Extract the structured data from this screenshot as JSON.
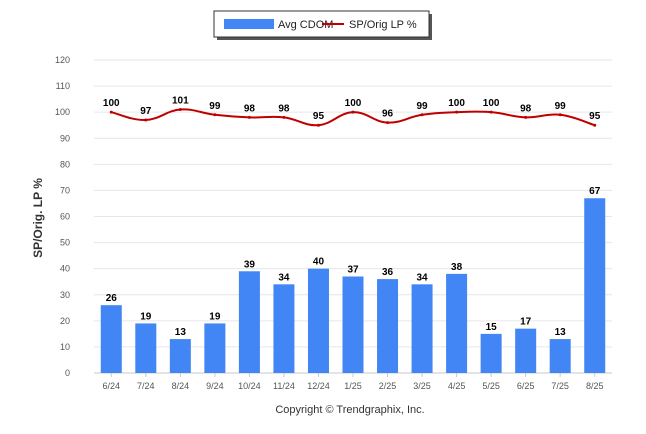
{
  "chart_data": {
    "type": "bar",
    "categories": [
      "6/24",
      "7/24",
      "8/24",
      "9/24",
      "10/24",
      "11/24",
      "12/24",
      "1/25",
      "2/25",
      "3/25",
      "4/25",
      "5/25",
      "6/25",
      "7/25",
      "8/25"
    ],
    "series": [
      {
        "name": "Avg CDOM",
        "kind": "bar",
        "color": "#4285f4",
        "values": [
          26,
          19,
          13,
          19,
          39,
          34,
          40,
          37,
          36,
          34,
          38,
          15,
          17,
          13,
          67
        ]
      },
      {
        "name": "SP/Orig LP %",
        "kind": "line",
        "color": "#c00000",
        "values": [
          100,
          97,
          101,
          99,
          98,
          98,
          95,
          100,
          96,
          99,
          100,
          100,
          98,
          99,
          95
        ]
      }
    ],
    "ylabel": "SP/Orig. LP %",
    "ylim": [
      0,
      120
    ],
    "yticks": [
      "0",
      "10",
      "20",
      "30",
      "40",
      "50",
      "60",
      "70",
      "80",
      "90",
      "100",
      "110",
      "120"
    ],
    "grid": true,
    "legend_position": "top-center"
  },
  "footer": {
    "copyright": "Copyright © Trendgraphix, Inc."
  }
}
